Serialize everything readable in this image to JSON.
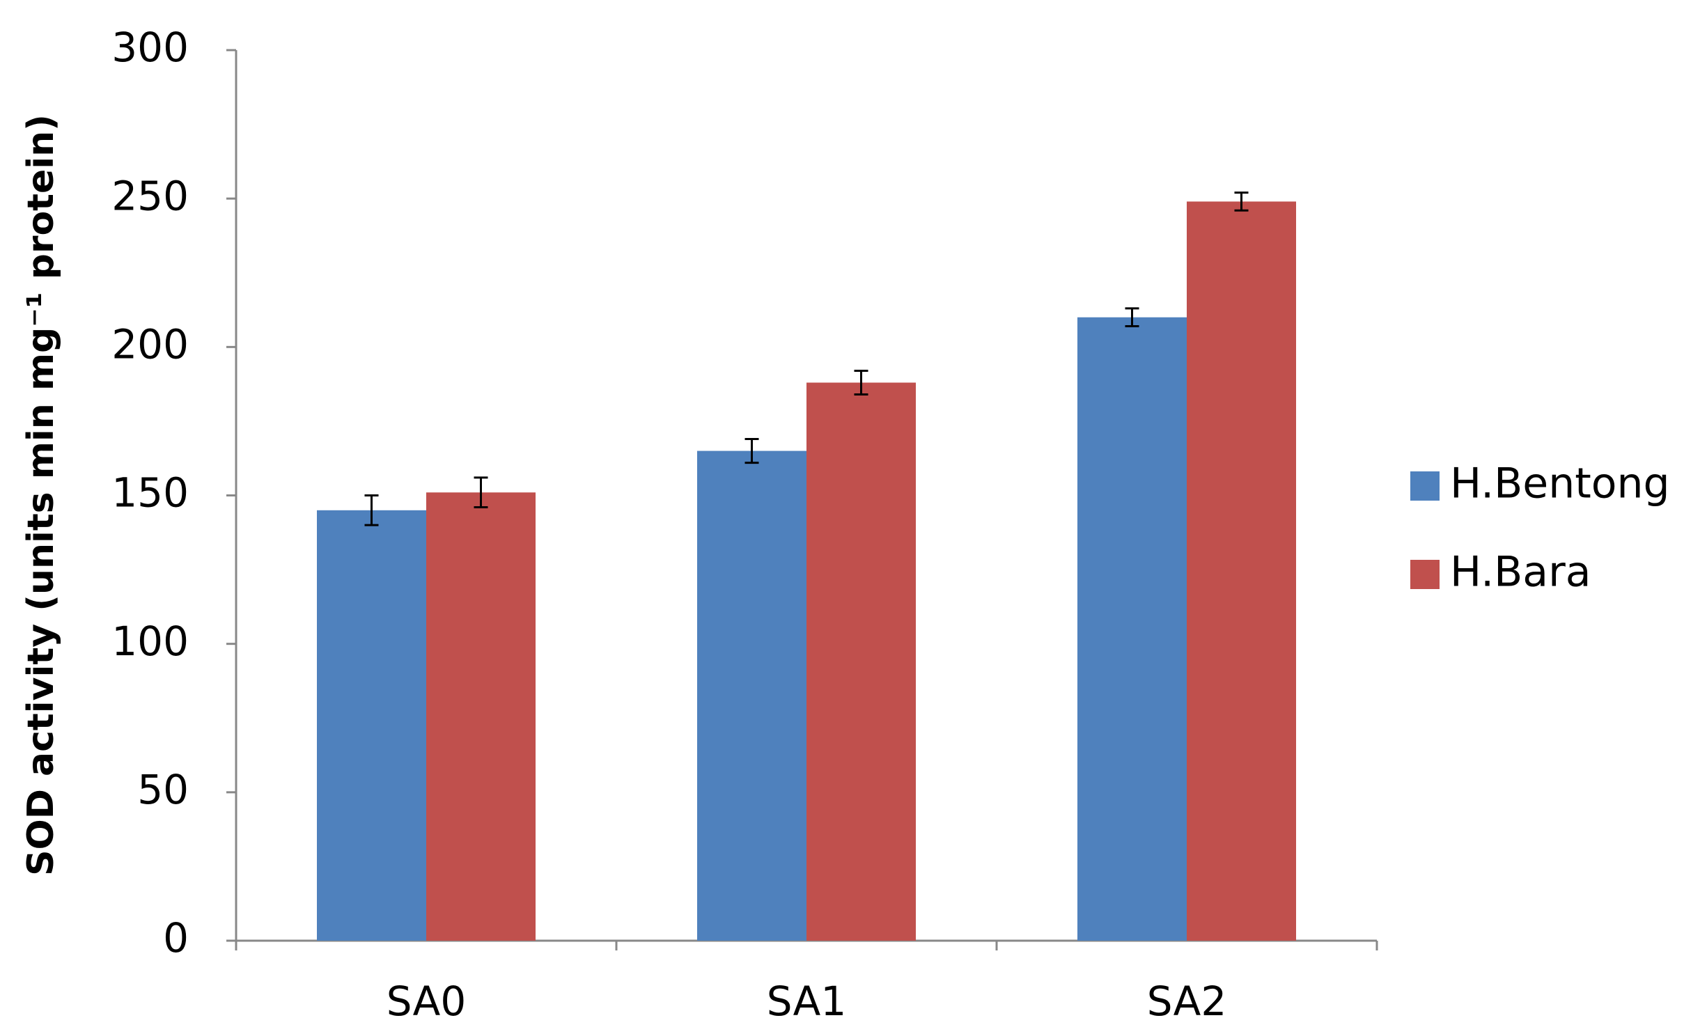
{
  "chart_data": {
    "type": "bar",
    "y_label": "SOD activity (units min mg⁻¹ protein)",
    "categories": [
      "SA0",
      "SA1",
      "SA2"
    ],
    "series": [
      {
        "name": "H.Bentong",
        "color": "#4f81bd",
        "values": [
          145,
          165,
          210
        ],
        "errors": [
          5,
          4,
          3
        ]
      },
      {
        "name": "H.Bara",
        "color": "#c0504d",
        "values": [
          151,
          188,
          249
        ],
        "errors": [
          5,
          4,
          3
        ]
      }
    ],
    "ylim": [
      0,
      300
    ],
    "yticks": [
      0,
      50,
      100,
      150,
      200,
      250,
      300
    ],
    "legend": "right"
  }
}
